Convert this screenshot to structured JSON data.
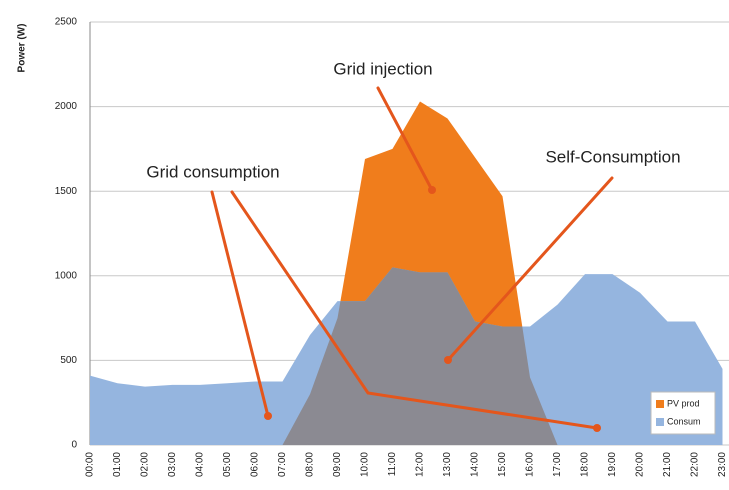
{
  "chart_data": {
    "type": "area",
    "y_label": "Power (W)",
    "categories": [
      "00:00",
      "01:00",
      "02:00",
      "03:00",
      "04:00",
      "05:00",
      "06:00",
      "07:00",
      "08:00",
      "09:00",
      "10:00",
      "11:00",
      "12:00",
      "13:00",
      "14:00",
      "15:00",
      "16:00",
      "17:00",
      "18:00",
      "19:00",
      "20:00",
      "21:00",
      "22:00",
      "23:00"
    ],
    "series": [
      {
        "name": "PV prod",
        "color": "#f07d1c",
        "values": [
          0,
          0,
          0,
          0,
          0,
          0,
          0,
          0,
          300,
          750,
          1690,
          1750,
          2030,
          1930,
          1700,
          1470,
          400,
          0,
          0,
          0,
          0,
          0,
          0,
          0
        ]
      },
      {
        "name": "Consum",
        "color": "#95b5df",
        "values": [
          410,
          365,
          345,
          355,
          355,
          365,
          375,
          375,
          650,
          850,
          850,
          1050,
          1020,
          1020,
          730,
          700,
          700,
          830,
          1010,
          1010,
          900,
          730,
          730,
          450
        ]
      }
    ],
    "overlap_color": "#8b8a92",
    "ylim": [
      0,
      2500
    ],
    "yticks": [
      0,
      500,
      1000,
      1500,
      2000,
      2500
    ],
    "grid": true,
    "legend": "lower right",
    "annotations": [
      "Grid injection",
      "Self-Consumption",
      "Grid consumption"
    ]
  }
}
